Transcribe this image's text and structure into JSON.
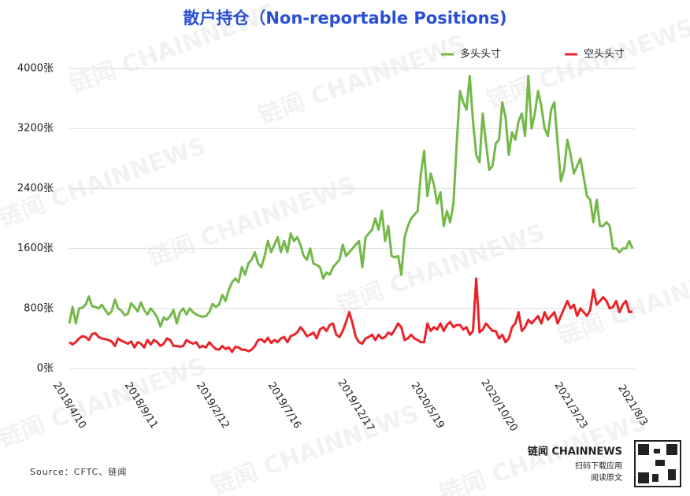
{
  "chart_data": {
    "type": "line",
    "title": "散户持仓（Non-reportable Positions)",
    "categories": [
      "2018/4/10",
      null,
      null,
      null,
      null,
      null,
      null,
      null,
      null,
      null,
      null,
      null,
      null,
      null,
      null,
      null,
      null,
      null,
      null,
      null,
      null,
      null,
      "2018/9/11",
      null,
      null,
      null,
      null,
      null,
      null,
      null,
      null,
      null,
      null,
      null,
      null,
      null,
      null,
      null,
      null,
      null,
      null,
      null,
      null,
      null,
      "2019/2/12",
      null,
      null,
      null,
      null,
      null,
      null,
      null,
      null,
      null,
      null,
      null,
      null,
      null,
      null,
      null,
      null,
      null,
      null,
      null,
      null,
      null,
      "2019/7/16",
      null,
      null,
      null,
      null,
      null,
      null,
      null,
      null,
      null,
      null,
      null,
      null,
      null,
      null,
      null,
      null,
      null,
      null,
      null,
      null,
      null,
      "2019/12/17",
      null,
      null,
      null,
      null,
      null,
      null,
      null,
      null,
      null,
      null,
      null,
      null,
      null,
      null,
      null,
      null,
      null,
      null,
      null,
      null,
      null,
      "2020/5/19",
      null,
      null,
      null,
      null,
      null,
      null,
      null,
      null,
      null,
      null,
      null,
      null,
      null,
      null,
      null,
      null,
      null,
      null,
      null,
      null,
      null,
      "2020/10/20",
      null,
      null,
      null,
      null,
      null,
      null,
      null,
      null,
      null,
      null,
      null,
      null,
      null,
      null,
      null,
      null,
      null,
      null,
      null,
      null,
      null,
      "2021/3/23",
      null,
      null,
      null,
      null,
      null,
      null,
      null,
      null,
      null,
      null,
      null,
      null,
      null,
      null,
      null,
      null,
      null,
      null,
      "2021/8/3"
    ],
    "series": [
      {
        "name": "多头头寸",
        "color": "#74b84a",
        "values": [
          600,
          820,
          600,
          800,
          810,
          850,
          960,
          830,
          820,
          800,
          850,
          780,
          720,
          760,
          920,
          800,
          770,
          710,
          730,
          870,
          820,
          760,
          880,
          780,
          720,
          800,
          750,
          680,
          560,
          680,
          650,
          700,
          780,
          600,
          750,
          800,
          720,
          800,
          750,
          720,
          700,
          690,
          700,
          750,
          860,
          820,
          850,
          980,
          900,
          1050,
          1150,
          1200,
          1150,
          1350,
          1250,
          1400,
          1450,
          1550,
          1400,
          1350,
          1500,
          1700,
          1550,
          1650,
          1750,
          1550,
          1700,
          1550,
          1800,
          1700,
          1750,
          1650,
          1500,
          1450,
          1600,
          1400,
          1380,
          1350,
          1200,
          1280,
          1250,
          1350,
          1400,
          1450,
          1650,
          1500,
          1550,
          1600,
          1650,
          1700,
          1350,
          1750,
          1800,
          1850,
          2000,
          1850,
          2100,
          1700,
          1900,
          1500,
          1480,
          1500,
          1250,
          1750,
          1900,
          2000,
          2050,
          2100,
          2600,
          2900,
          2300,
          2600,
          2450,
          2200,
          2350,
          1900,
          2100,
          1950,
          2200,
          3000,
          3700,
          3550,
          3450,
          3900,
          3300,
          2850,
          2750,
          3400,
          3000,
          2650,
          2700,
          3000,
          3050,
          3550,
          3350,
          2850,
          3150,
          3050,
          3300,
          3400,
          3100,
          3900,
          3200,
          3400,
          3700,
          3500,
          3200,
          3100,
          3450,
          3550,
          3000,
          2500,
          2650,
          3050,
          2850,
          2600,
          2700,
          2800,
          2550,
          2300,
          2250,
          1950,
          2250,
          1900,
          1900,
          1950,
          1900,
          1600,
          1600,
          1550,
          1600,
          1600,
          1700,
          1600
        ]
      },
      {
        "name": "空头头寸",
        "color": "#e8242a",
        "values": [
          350,
          320,
          350,
          400,
          430,
          420,
          380,
          460,
          470,
          420,
          400,
          390,
          380,
          360,
          300,
          400,
          370,
          350,
          330,
          360,
          280,
          350,
          330,
          280,
          380,
          320,
          380,
          350,
          300,
          330,
          400,
          380,
          300,
          300,
          290,
          300,
          380,
          350,
          330,
          350,
          280,
          300,
          280,
          350,
          300,
          260,
          250,
          300,
          260,
          280,
          220,
          290,
          280,
          250,
          250,
          230,
          250,
          300,
          380,
          390,
          350,
          410,
          340,
          380,
          350,
          400,
          420,
          350,
          430,
          450,
          480,
          550,
          500,
          430,
          450,
          480,
          400,
          520,
          550,
          500,
          580,
          600,
          450,
          420,
          500,
          620,
          750,
          600,
          420,
          350,
          330,
          400,
          420,
          450,
          380,
          450,
          400,
          420,
          480,
          450,
          520,
          600,
          550,
          380,
          400,
          450,
          400,
          380,
          350,
          350,
          600,
          500,
          550,
          520,
          600,
          500,
          580,
          620,
          550,
          580,
          580,
          520,
          550,
          450,
          500,
          1200,
          480,
          520,
          600,
          550,
          500,
          500,
          400,
          450,
          350,
          400,
          550,
          600,
          750,
          500,
          550,
          650,
          600,
          650,
          700,
          600,
          750,
          650,
          700,
          750,
          600,
          700,
          800,
          900,
          800,
          850,
          700,
          800,
          750,
          700,
          780,
          1050,
          850,
          900,
          950,
          900,
          800,
          820,
          900,
          750,
          850,
          900,
          750,
          760
        ]
      }
    ],
    "ylim": [
      0,
      4000
    ],
    "yticks": [
      {
        "value": 0,
        "label": "0张"
      },
      {
        "value": 800,
        "label": "800张"
      },
      {
        "value": 1600,
        "label": "1600张"
      },
      {
        "value": 2400,
        "label": "2400张"
      },
      {
        "value": 3200,
        "label": "3200张"
      },
      {
        "value": 4000,
        "label": "4000张"
      }
    ],
    "grid": true,
    "legend": "top-right",
    "source": "Source：CFTC、链闻",
    "watermark": "链闻 CHAINNEWS",
    "brand": "链闻 CHAINNEWS",
    "brand_lines": [
      "扫码下载应用",
      "阅读原文"
    ]
  }
}
